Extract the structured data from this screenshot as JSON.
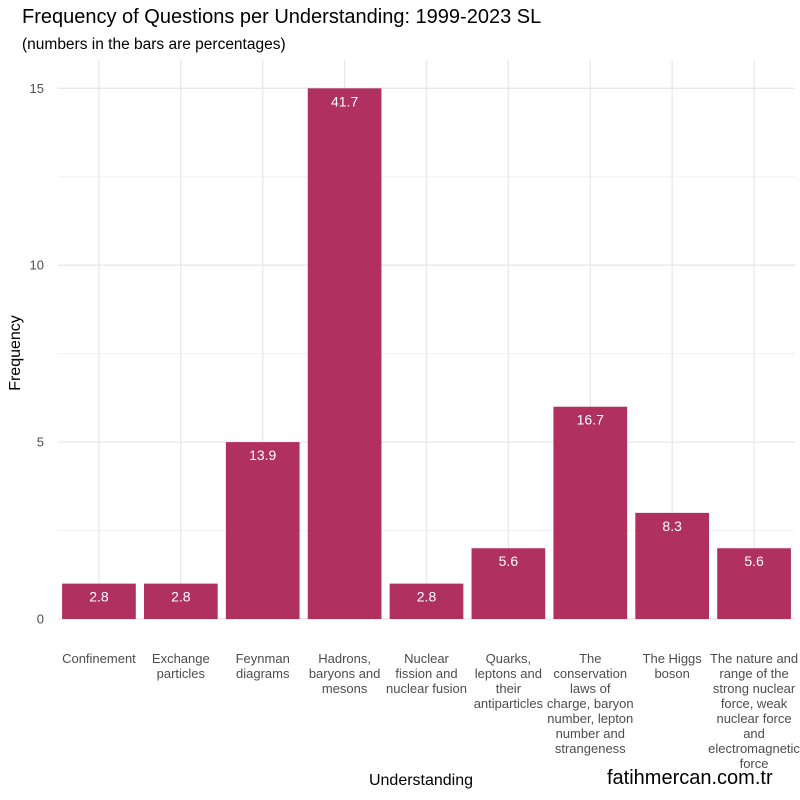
{
  "chart_data": {
    "type": "bar",
    "title": "Frequency of Questions per Understanding: 1999-2023 SL",
    "subtitle": "(numbers in the bars are percentages)",
    "xlabel": "Understanding",
    "ylabel": "Frequency",
    "ylim": [
      0,
      15.8
    ],
    "yticks": [
      0,
      5,
      10,
      15
    ],
    "grid": true,
    "categories": [
      "Confinement",
      "Exchange particles",
      "Feynman diagrams",
      "Hadrons, baryons and mesons",
      "Nuclear fission and nuclear fusion",
      "Quarks, leptons and their antiparticles",
      "The conservation laws of charge, baryon number, lepton number and strangeness",
      "The Higgs boson",
      "The nature and range of the strong nuclear force, weak nuclear force and electromagnetic force"
    ],
    "category_label_lines": [
      [
        "Confinement"
      ],
      [
        "Exchange",
        "particles"
      ],
      [
        "Feynman",
        "diagrams"
      ],
      [
        "Hadrons,",
        "baryons and",
        "mesons"
      ],
      [
        "Nuclear",
        "fission and",
        "nuclear fusion"
      ],
      [
        "Quarks,",
        "leptons and",
        "their",
        "antiparticles"
      ],
      [
        "The",
        "conservation",
        "laws of",
        "charge, baryon",
        "number, lepton",
        "number and",
        "strangeness"
      ],
      [
        "The Higgs",
        "boson"
      ],
      [
        "The nature and",
        "range of the",
        "strong nuclear",
        "force, weak",
        "nuclear force",
        "and",
        "electromagnetic",
        "force"
      ]
    ],
    "values": [
      1,
      1,
      5,
      15,
      1,
      2,
      6,
      3,
      2
    ],
    "bar_labels": [
      "2.8",
      "2.8",
      "13.9",
      "41.7",
      "2.8",
      "5.6",
      "16.7",
      "8.3",
      "5.6"
    ],
    "bar_color": "#B03060"
  },
  "credit": "fatihmercan.com.tr"
}
